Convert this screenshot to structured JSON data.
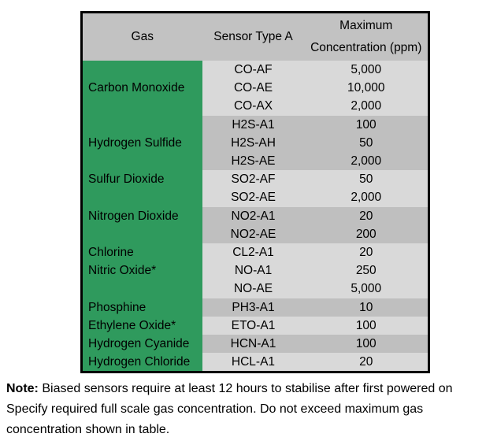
{
  "colors": {
    "green": "#2f9a5d",
    "header_gray": "#c2c2c2",
    "light_gray": "#d9d9d9",
    "dark_gray": "#bfbfbf"
  },
  "table": {
    "header": {
      "gas": "Gas",
      "sensor": "Sensor Type A",
      "max_line1": "Maximum",
      "max_line2": "Concentration (ppm)"
    },
    "groups": [
      {
        "gas": "Carbon Monoxide",
        "align": "middle",
        "shade": "light",
        "rows": [
          {
            "sensor": "CO-AF",
            "ppm": "5,000"
          },
          {
            "sensor": "CO-AE",
            "ppm": "10,000"
          },
          {
            "sensor": "CO-AX",
            "ppm": "2,000"
          }
        ]
      },
      {
        "gas": "Hydrogen Sulfide",
        "align": "middle",
        "shade": "dark",
        "rows": [
          {
            "sensor": "H2S-A1",
            "ppm": "100"
          },
          {
            "sensor": "H2S-AH",
            "ppm": "50"
          },
          {
            "sensor": "H2S-AE",
            "ppm": "2,000"
          }
        ]
      },
      {
        "gas": "Sulfur Dioxide",
        "align": "top",
        "shade": "light",
        "rows": [
          {
            "sensor": "SO2-AF",
            "ppm": "50"
          },
          {
            "sensor": "SO2-AE",
            "ppm": "2,000"
          }
        ]
      },
      {
        "gas": "Nitrogen Dioxide",
        "align": "top",
        "shade": "dark",
        "rows": [
          {
            "sensor": "NO2-A1",
            "ppm": "20"
          },
          {
            "sensor": "NO2-AE",
            "ppm": "200"
          }
        ]
      },
      {
        "gas": "Chlorine",
        "align": "top",
        "shade": "light",
        "rows": [
          {
            "sensor": "CL2-A1",
            "ppm": "20"
          }
        ]
      },
      {
        "gas": "Nitric Oxide*",
        "align": "top",
        "shade": "light",
        "rows": [
          {
            "sensor": "NO-A1",
            "ppm": "250"
          },
          {
            "sensor": "NO-AE",
            "ppm": "5,000"
          }
        ]
      },
      {
        "gas": "Phosphine",
        "align": "top",
        "shade": "dark",
        "rows": [
          {
            "sensor": "PH3-A1",
            "ppm": "10"
          }
        ]
      },
      {
        "gas": "Ethylene Oxide*",
        "align": "top",
        "shade": "light",
        "rows": [
          {
            "sensor": "ETO-A1",
            "ppm": "100"
          }
        ]
      },
      {
        "gas": "Hydrogen Cyanide",
        "align": "top",
        "shade": "dark",
        "rows": [
          {
            "sensor": "HCN-A1",
            "ppm": "100"
          }
        ]
      },
      {
        "gas": "Hydrogen Chloride",
        "align": "top",
        "shade": "light",
        "rows": [
          {
            "sensor": "HCL-A1",
            "ppm": "20"
          }
        ]
      }
    ]
  },
  "note": {
    "label": "Note:",
    "lines": [
      "Biased sensors require at least 12 hours to stabilise after first powered on",
      "Specify required full scale gas concentration. Do not exceed maximum gas",
      "concentration shown in table."
    ]
  }
}
